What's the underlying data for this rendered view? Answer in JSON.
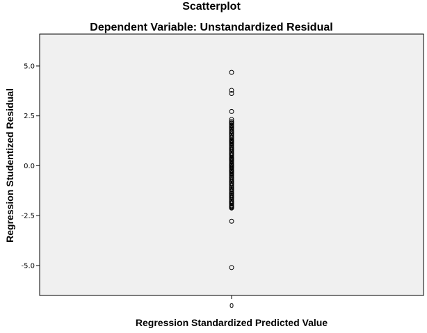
{
  "chart_data": {
    "type": "scatter",
    "title": "Scatterplot",
    "subtitle": "Dependent Variable: Unstandardized Residual",
    "xlabel": "Regression Standardized Predicted Value",
    "ylabel": "Regression Studentized Residual",
    "xlim": [
      -1,
      1
    ],
    "ylim": [
      -6.5,
      6.6
    ],
    "x_ticks": [
      0
    ],
    "x_tick_labels": [
      "0"
    ],
    "y_ticks": [
      5.0,
      2.5,
      0.0,
      -2.5,
      -5.0
    ],
    "y_tick_labels": [
      "5.0",
      "2.5",
      "0.0",
      "-2.5",
      "-5.0"
    ],
    "grid": false,
    "legend": "none",
    "colors": {
      "plot_bg": "#f0f0f0",
      "marker_stroke": "#000000",
      "page_bg": "#ffffff"
    },
    "series": [
      {
        "x": [
          0,
          0,
          0,
          0,
          0,
          0,
          0,
          0,
          0,
          0,
          0,
          0,
          0,
          0,
          0,
          0,
          0,
          0,
          0,
          0,
          0,
          0,
          0,
          0,
          0,
          0,
          0,
          0,
          0,
          0,
          0,
          0,
          0,
          0,
          0,
          0,
          0,
          0,
          0,
          0,
          0,
          0,
          0,
          0,
          0,
          0,
          0,
          0,
          0,
          0,
          0,
          0,
          0,
          0,
          0,
          0,
          0,
          0,
          0,
          0,
          0,
          0,
          0,
          0,
          0,
          0,
          0,
          0,
          0,
          0,
          0,
          0,
          0,
          0,
          0,
          0,
          0,
          0,
          0,
          0,
          0,
          0,
          0,
          0,
          0,
          0,
          0,
          0,
          0,
          0,
          0,
          0,
          0,
          0,
          0,
          0,
          0,
          0
        ],
        "y": [
          4.68,
          3.78,
          3.62,
          2.72,
          2.32,
          2.22,
          2.12,
          2.05,
          1.98,
          1.9,
          1.82,
          1.75,
          1.68,
          1.6,
          1.52,
          1.45,
          1.38,
          1.3,
          1.22,
          1.15,
          1.08,
          1.0,
          0.92,
          0.85,
          0.78,
          0.7,
          0.62,
          0.55,
          0.48,
          0.4,
          0.32,
          0.25,
          0.18,
          0.1,
          0.02,
          -0.05,
          -0.12,
          -0.2,
          -0.28,
          -0.35,
          -0.42,
          -0.5,
          -0.58,
          -0.65,
          -0.72,
          -0.8,
          -0.88,
          -0.95,
          -1.02,
          -1.1,
          -1.18,
          -1.25,
          -1.32,
          -1.4,
          -1.48,
          -1.55,
          -1.62,
          -1.7,
          -1.78,
          -1.85,
          -1.92,
          -2.0,
          -2.08,
          -2.12,
          -2.78,
          -5.1,
          2.0,
          1.6,
          1.2,
          0.8,
          0.4,
          0.0,
          -0.4,
          -0.8,
          -1.2,
          -1.6,
          1.9,
          1.4,
          0.9,
          0.3,
          -0.3,
          -0.9,
          -1.4,
          -1.9,
          2.15,
          1.7,
          1.1,
          0.6,
          -0.1,
          -0.6,
          -1.1,
          -1.5,
          -1.8,
          -2.04,
          0.05,
          -0.25,
          0.35,
          1.25
        ]
      }
    ]
  }
}
